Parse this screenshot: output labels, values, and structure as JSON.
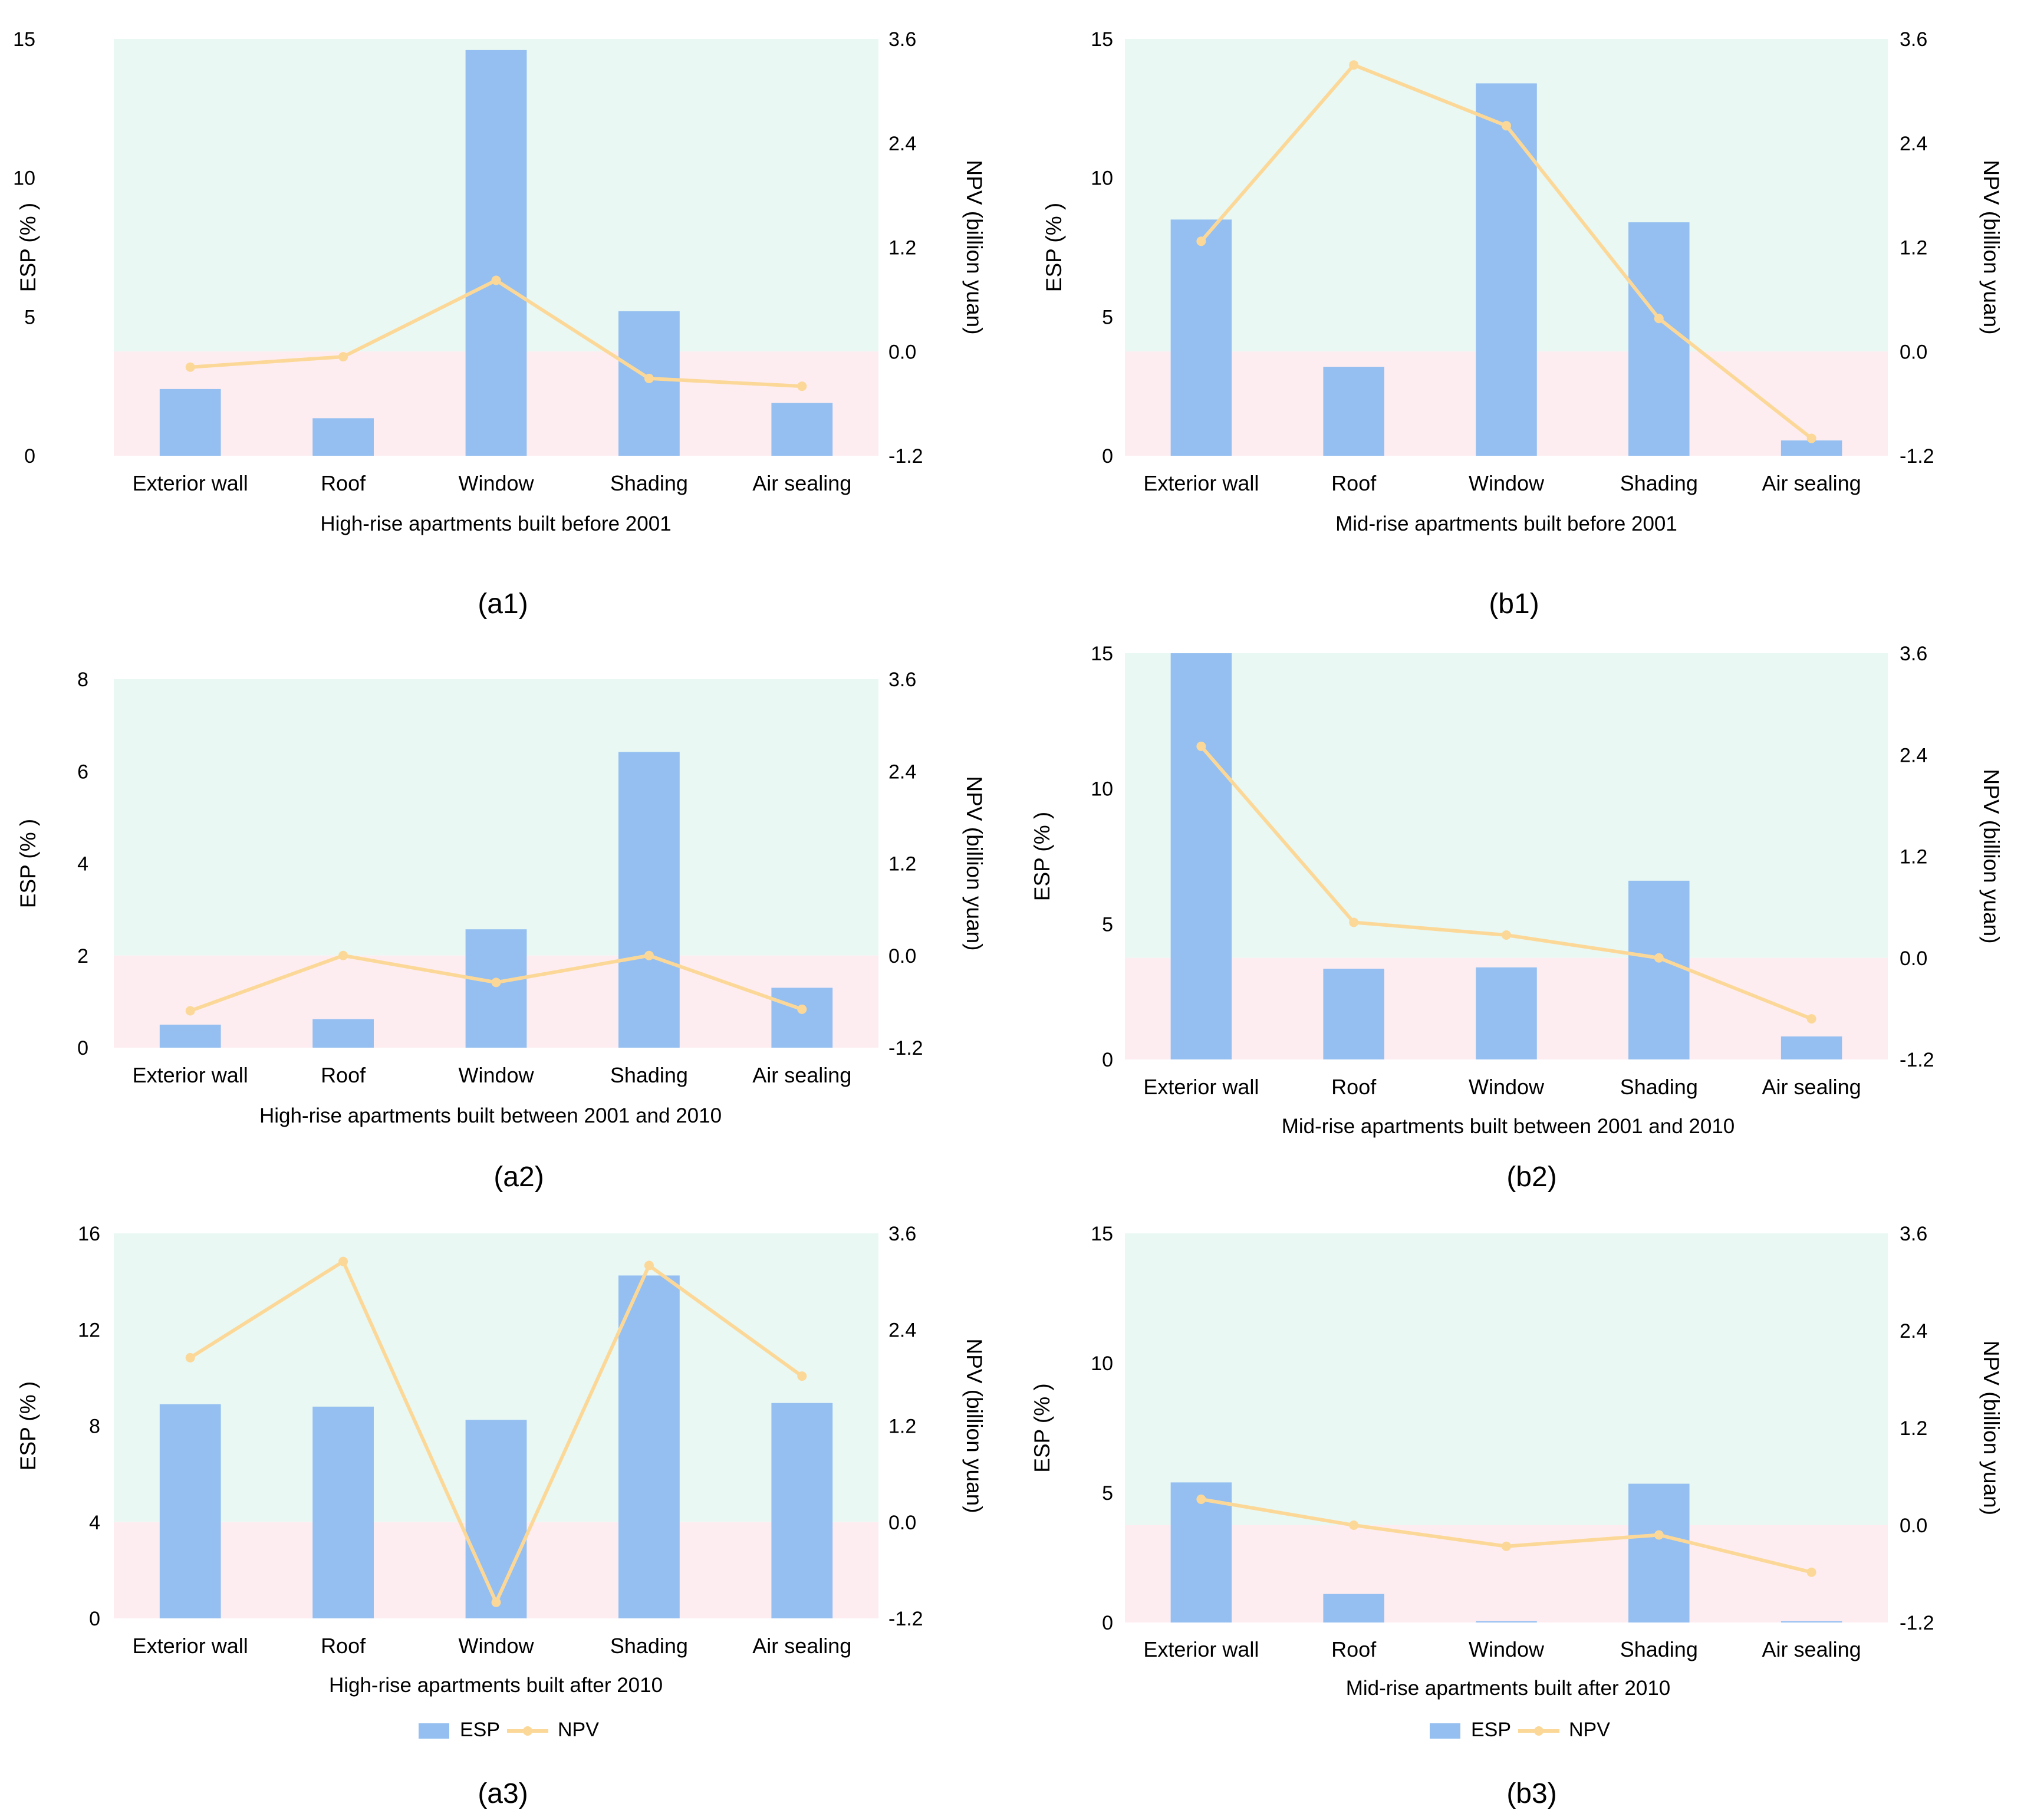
{
  "colors": {
    "esp_bar": "#94bff0",
    "npv_line": "#fcd898",
    "positive_band": "#e9f8f3",
    "negative_band": "#fdedf1"
  },
  "legend": {
    "esp": "ESP",
    "npv": "NPV"
  },
  "chart_data": [
    {
      "type": "bar",
      "panel_label": "(a1)",
      "title": "High-rise apartments built before 2001",
      "xlabel": "High-rise apartments built before 2001",
      "ylabel": "ESP (% )",
      "y2label": "NPV (billion yuan)",
      "categories": [
        "Exterior wall",
        "Roof",
        "Window",
        "Shading",
        "Air sealing"
      ],
      "ylim": [
        0,
        15
      ],
      "yticks": [
        0,
        5,
        10,
        15
      ],
      "ytick_labels": [
        "0",
        "5",
        "10",
        "15"
      ],
      "y2lim": [
        -1.2,
        3.6
      ],
      "y2ticks": [
        -1.2,
        0.0,
        1.2,
        2.4,
        3.6
      ],
      "y2tick_labels": [
        "-1.2",
        "0.0",
        "1.2",
        "2.4",
        "3.6"
      ],
      "series": [
        {
          "name": "ESP",
          "axis": "left",
          "type": "bar",
          "values": [
            2.4,
            1.35,
            14.6,
            5.2,
            1.9
          ]
        },
        {
          "name": "NPV",
          "axis": "right",
          "type": "line",
          "values": [
            -0.18,
            -0.06,
            0.82,
            -0.31,
            -0.4
          ]
        }
      ]
    },
    {
      "type": "bar",
      "panel_label": "(b1)",
      "title": "Mid-rise apartments built before 2001",
      "xlabel": "Mid-rise apartments built before 2001",
      "ylabel": "ESP (% )",
      "y2label": "NPV (billion yuan)",
      "categories": [
        "Exterior wall",
        "Roof",
        "Window",
        "Shading",
        "Air sealing"
      ],
      "ylim": [
        0,
        15
      ],
      "yticks": [
        0,
        5,
        10,
        15
      ],
      "ytick_labels": [
        "0",
        "5",
        "10",
        "15"
      ],
      "y2lim": [
        -1.2,
        3.6
      ],
      "y2ticks": [
        -1.2,
        0.0,
        1.2,
        2.4,
        3.6
      ],
      "y2tick_labels": [
        "-1.2",
        "0.0",
        "1.2",
        "2.4",
        "3.6"
      ],
      "series": [
        {
          "name": "ESP",
          "axis": "left",
          "type": "bar",
          "values": [
            8.5,
            3.2,
            13.4,
            8.4,
            0.55
          ]
        },
        {
          "name": "NPV",
          "axis": "right",
          "type": "line",
          "values": [
            1.27,
            3.3,
            2.6,
            0.38,
            -1.0
          ]
        }
      ]
    },
    {
      "type": "bar",
      "panel_label": "(a2)",
      "title": "High-rise apartments built  between 2001 and 2010",
      "xlabel": "High-rise apartments built  between 2001 and 2010",
      "ylabel": "ESP (% )",
      "y2label": "NPV (billion yuan)",
      "categories": [
        "Exterior wall",
        "Roof",
        "Window",
        "Shading",
        "Air sealing"
      ],
      "ylim": [
        0,
        8
      ],
      "yticks": [
        0,
        2,
        4,
        6,
        8
      ],
      "ytick_labels": [
        "0",
        "2",
        "4",
        "6",
        "8"
      ],
      "y2lim": [
        -1.2,
        3.6
      ],
      "y2ticks": [
        -1.2,
        0.0,
        1.2,
        2.4,
        3.6
      ],
      "y2tick_labels": [
        "-1.2",
        "0.0",
        "1.2",
        "2.4",
        "3.6"
      ],
      "series": [
        {
          "name": "ESP",
          "axis": "left",
          "type": "bar",
          "values": [
            0.5,
            0.62,
            2.57,
            6.42,
            1.3
          ]
        },
        {
          "name": "NPV",
          "axis": "right",
          "type": "line",
          "values": [
            -0.72,
            0.0,
            -0.35,
            0.0,
            -0.7
          ]
        }
      ]
    },
    {
      "type": "bar",
      "panel_label": "(b2)",
      "title": "Mid-rise apartments built between 2001 and 2010",
      "xlabel": "Mid-rise apartments built between 2001 and 2010",
      "ylabel": "ESP (% )",
      "y2label": "NPV (billion yuan)",
      "categories": [
        "Exterior wall",
        "Roof",
        "Window",
        "Shading",
        "Air sealing"
      ],
      "ylim": [
        0,
        15
      ],
      "yticks": [
        0,
        5,
        10,
        15
      ],
      "ytick_labels": [
        "0",
        "5",
        "10",
        "15"
      ],
      "y2lim": [
        -1.2,
        3.6
      ],
      "y2ticks": [
        -1.2,
        0.0,
        1.2,
        2.4,
        3.6
      ],
      "y2tick_labels": [
        "-1.2",
        "0.0",
        "1.2",
        "2.4",
        "3.6"
      ],
      "series": [
        {
          "name": "ESP",
          "axis": "left",
          "type": "bar",
          "values": [
            15.0,
            3.35,
            3.4,
            6.6,
            0.85
          ]
        },
        {
          "name": "NPV",
          "axis": "right",
          "type": "line",
          "values": [
            2.5,
            0.42,
            0.27,
            0.0,
            -0.72
          ]
        }
      ]
    },
    {
      "type": "bar",
      "panel_label": "(a3)",
      "title": "High-rise apartments built   after 2010",
      "xlabel": "High-rise apartments built   after 2010",
      "ylabel": "ESP (% )",
      "y2label": "NPV (billion yuan)",
      "categories": [
        "Exterior wall",
        "Roof",
        "Window",
        "Shading",
        "Air sealing"
      ],
      "ylim": [
        0,
        16
      ],
      "yticks": [
        0,
        4,
        8,
        12,
        16
      ],
      "ytick_labels": [
        "0",
        "4",
        "8",
        "12",
        "16"
      ],
      "y2lim": [
        -1.2,
        3.6
      ],
      "y2ticks": [
        -1.2,
        0.0,
        1.2,
        2.4,
        3.6
      ],
      "y2tick_labels": [
        "-1.2",
        "0.0",
        "1.2",
        "2.4",
        "3.6"
      ],
      "series": [
        {
          "name": "ESP",
          "axis": "left",
          "type": "bar",
          "values": [
            8.9,
            8.8,
            8.25,
            14.25,
            8.95
          ]
        },
        {
          "name": "NPV",
          "axis": "right",
          "type": "line",
          "values": [
            2.05,
            3.25,
            -1.0,
            3.2,
            1.82
          ]
        }
      ]
    },
    {
      "type": "bar",
      "panel_label": "(b3)",
      "title": "Mid-rise apartments built  after 2010",
      "xlabel": "Mid-rise apartments built  after 2010",
      "ylabel": "ESP (% )",
      "y2label": "NPV (billion yuan)",
      "categories": [
        "Exterior wall",
        "Roof",
        "Window",
        "Shading",
        "Air sealing"
      ],
      "ylim": [
        0,
        15
      ],
      "yticks": [
        0,
        5,
        10,
        15
      ],
      "ytick_labels": [
        "0",
        "5",
        "10",
        "15"
      ],
      "y2lim": [
        -1.2,
        3.6
      ],
      "y2ticks": [
        -1.2,
        0.0,
        1.2,
        2.4,
        3.6
      ],
      "y2tick_labels": [
        "-1.2",
        "0.0",
        "1.2",
        "2.4",
        "3.6"
      ],
      "series": [
        {
          "name": "ESP",
          "axis": "left",
          "type": "bar",
          "values": [
            5.4,
            1.1,
            0.05,
            5.35,
            0.05
          ]
        },
        {
          "name": "NPV",
          "axis": "right",
          "type": "line",
          "values": [
            0.32,
            0.0,
            -0.26,
            -0.12,
            -0.58
          ]
        }
      ]
    }
  ]
}
